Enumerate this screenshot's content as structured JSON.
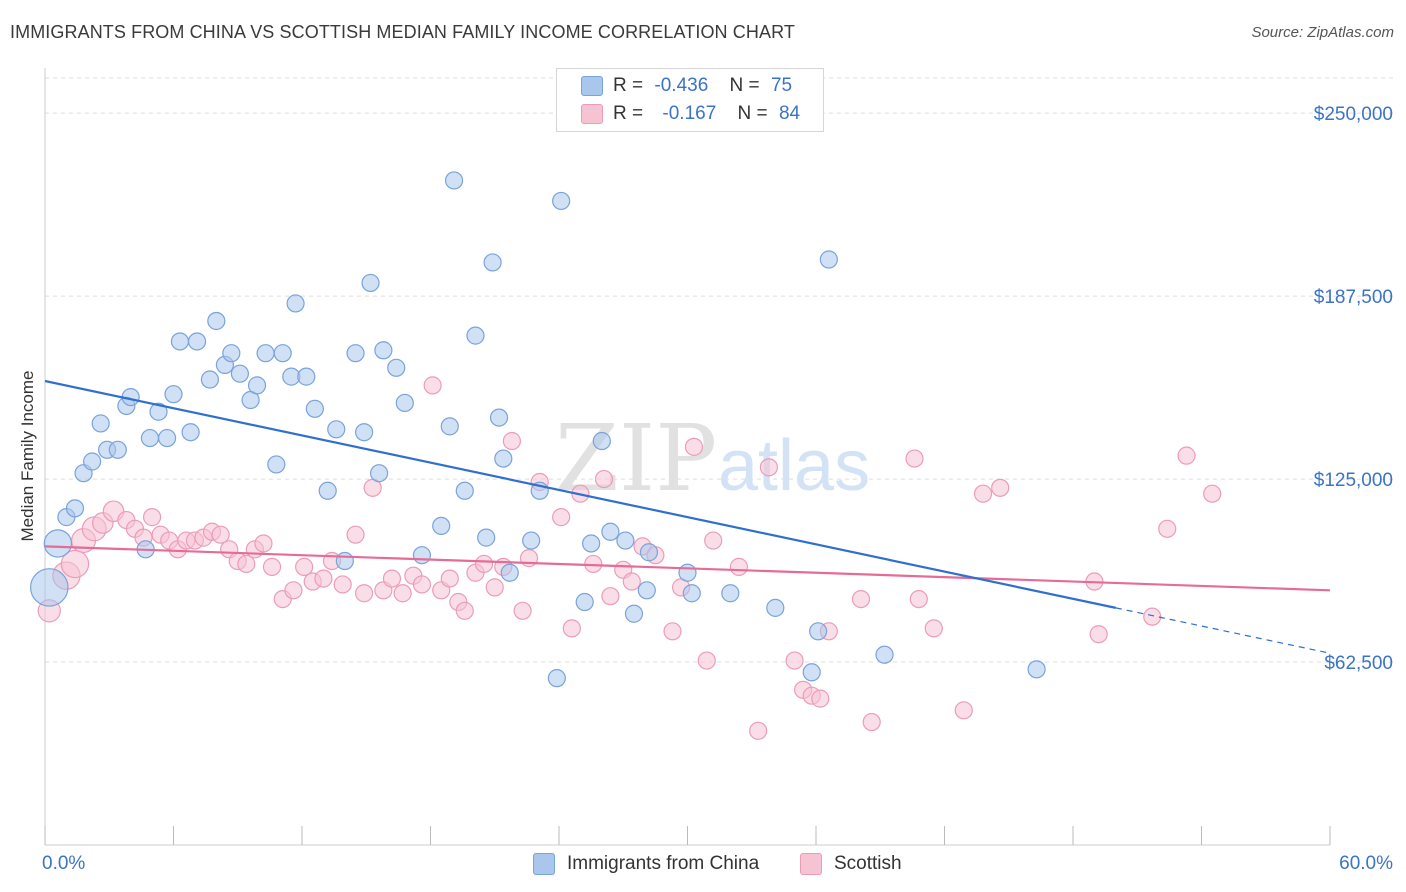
{
  "header": {
    "title": "IMMIGRANTS FROM CHINA VS SCOTTISH MEDIAN FAMILY INCOME CORRELATION CHART",
    "source": "Source: ZipAtlas.com"
  },
  "legend": {
    "china": {
      "r_label": "R =",
      "r_value": "-0.436",
      "n_label": "N =",
      "n_value": "75"
    },
    "scottish": {
      "r_label": "R =",
      "r_value": "-0.167",
      "n_label": "N =",
      "n_value": "84"
    }
  },
  "bottom_legend": {
    "china_label": "Immigrants from China",
    "scottish_label": "Scottish"
  },
  "watermark": {
    "zip": "ZIP",
    "atlas": "atlas"
  },
  "colors": {
    "china_fill": "#a9c6ec",
    "china_stroke": "#7aa3d9",
    "china_line": "#2f6fcf",
    "scottish_fill": "#f6c3d3",
    "scottish_stroke": "#ec9cb8",
    "scottish_line": "#e66b97",
    "axis_text": "#3b73c6",
    "grid": "#dddddd"
  },
  "chart_data": {
    "type": "scatter",
    "title": "IMMIGRANTS FROM CHINA VS SCOTTISH MEDIAN FAMILY INCOME CORRELATION CHART",
    "xlabel": "",
    "ylabel": "Median Family Income",
    "xlim": [
      0,
      60
    ],
    "ylim": [
      0,
      262000
    ],
    "x_tick_labels": [
      "0.0%",
      "60.0%"
    ],
    "y_ticks": [
      62500,
      125000,
      187500,
      250000
    ],
    "y_tick_labels": [
      "$62,500",
      "$125,000",
      "$187,500",
      "$250,000"
    ],
    "grid": true,
    "legend_position": "top-center",
    "series": [
      {
        "name": "Immigrants from China",
        "r": -0.436,
        "n": 75,
        "trend": {
          "x": [
            0,
            50
          ],
          "y": [
            158500,
            81000
          ]
        },
        "trend_dashed": {
          "x": [
            50,
            60
          ],
          "y": [
            81000,
            65500
          ]
        },
        "points": [
          [
            0.2,
            88000,
            2.2
          ],
          [
            0.6,
            103000,
            1.6
          ],
          [
            1.0,
            112000,
            1
          ],
          [
            1.4,
            115000,
            1
          ],
          [
            1.8,
            127000,
            1
          ],
          [
            2.2,
            131000,
            1
          ],
          [
            2.6,
            144000,
            1
          ],
          [
            2.9,
            135000,
            1
          ],
          [
            3.4,
            135000,
            1
          ],
          [
            3.8,
            150000,
            1
          ],
          [
            4.0,
            153000,
            1
          ],
          [
            4.7,
            101000,
            1
          ],
          [
            4.9,
            139000,
            1
          ],
          [
            5.3,
            148000,
            1
          ],
          [
            5.7,
            139000,
            1
          ],
          [
            6.0,
            154000,
            1
          ],
          [
            6.3,
            172000,
            1
          ],
          [
            6.8,
            141000,
            1
          ],
          [
            7.1,
            172000,
            1
          ],
          [
            7.7,
            159000,
            1
          ],
          [
            8.0,
            179000,
            1
          ],
          [
            8.4,
            164000,
            1
          ],
          [
            8.7,
            168000,
            1
          ],
          [
            9.1,
            161000,
            1
          ],
          [
            9.6,
            152000,
            1
          ],
          [
            9.9,
            157000,
            1
          ],
          [
            10.3,
            168000,
            1
          ],
          [
            10.8,
            130000,
            1
          ],
          [
            11.1,
            168000,
            1
          ],
          [
            11.5,
            160000,
            1
          ],
          [
            11.7,
            185000,
            1
          ],
          [
            12.2,
            160000,
            1
          ],
          [
            12.6,
            149000,
            1
          ],
          [
            13.2,
            121000,
            1
          ],
          [
            13.6,
            142000,
            1
          ],
          [
            14.0,
            97000,
            1
          ],
          [
            14.5,
            168000,
            1
          ],
          [
            14.9,
            141000,
            1
          ],
          [
            15.2,
            192000,
            1
          ],
          [
            15.6,
            127000,
            1
          ],
          [
            15.8,
            169000,
            1
          ],
          [
            16.4,
            163000,
            1
          ],
          [
            16.8,
            151000,
            1
          ],
          [
            17.6,
            99000,
            1
          ],
          [
            18.5,
            109000,
            1
          ],
          [
            18.9,
            143000,
            1
          ],
          [
            19.1,
            227000,
            1
          ],
          [
            19.6,
            121000,
            1
          ],
          [
            20.1,
            174000,
            1
          ],
          [
            20.6,
            105000,
            1
          ],
          [
            20.9,
            199000,
            1
          ],
          [
            21.2,
            146000,
            1
          ],
          [
            21.4,
            132000,
            1
          ],
          [
            21.7,
            93000,
            1
          ],
          [
            22.7,
            104000,
            1
          ],
          [
            23.1,
            121000,
            1
          ],
          [
            23.9,
            57000,
            1
          ],
          [
            24.1,
            220000,
            1
          ],
          [
            25.2,
            83000,
            1
          ],
          [
            25.5,
            103000,
            1
          ],
          [
            26.0,
            138000,
            1
          ],
          [
            26.4,
            107000,
            1
          ],
          [
            27.1,
            104000,
            1
          ],
          [
            27.5,
            79000,
            1
          ],
          [
            28.1,
            87000,
            1
          ],
          [
            28.2,
            100000,
            1
          ],
          [
            30.0,
            93000,
            1
          ],
          [
            30.2,
            86000,
            1
          ],
          [
            32.0,
            86000,
            1
          ],
          [
            34.1,
            81000,
            1
          ],
          [
            35.8,
            59000,
            1
          ],
          [
            36.1,
            73000,
            1
          ],
          [
            36.6,
            200000,
            1
          ],
          [
            39.2,
            65000,
            1
          ],
          [
            46.3,
            60000,
            1
          ]
        ]
      },
      {
        "name": "Scottish",
        "r": -0.167,
        "n": 84,
        "trend": {
          "x": [
            0,
            60
          ],
          "y": [
            102000,
            87000
          ]
        },
        "points": [
          [
            0.2,
            80000,
            1.3
          ],
          [
            1.0,
            92000,
            1.6
          ],
          [
            1.4,
            96000,
            1.6
          ],
          [
            1.8,
            104000,
            1.4
          ],
          [
            2.3,
            108000,
            1.4
          ],
          [
            2.7,
            110000,
            1.2
          ],
          [
            3.2,
            114000,
            1.2
          ],
          [
            3.8,
            111000,
            1
          ],
          [
            4.2,
            108000,
            1
          ],
          [
            4.6,
            105000,
            1
          ],
          [
            5.0,
            112000,
            1
          ],
          [
            5.4,
            106000,
            1
          ],
          [
            5.8,
            104000,
            1
          ],
          [
            6.2,
            101000,
            1
          ],
          [
            6.6,
            104000,
            1
          ],
          [
            7.0,
            104000,
            1
          ],
          [
            7.4,
            105000,
            1
          ],
          [
            7.8,
            107000,
            1
          ],
          [
            8.2,
            106000,
            1
          ],
          [
            8.6,
            101000,
            1
          ],
          [
            9.0,
            97000,
            1
          ],
          [
            9.4,
            96000,
            1
          ],
          [
            9.8,
            101000,
            1
          ],
          [
            10.2,
            103000,
            1
          ],
          [
            10.6,
            95000,
            1
          ],
          [
            11.1,
            84000,
            1
          ],
          [
            11.6,
            87000,
            1
          ],
          [
            12.1,
            95000,
            1
          ],
          [
            12.5,
            90000,
            1
          ],
          [
            13.0,
            91000,
            1
          ],
          [
            13.4,
            97000,
            1
          ],
          [
            13.9,
            89000,
            1
          ],
          [
            14.5,
            106000,
            1
          ],
          [
            14.9,
            86000,
            1
          ],
          [
            15.3,
            122000,
            1
          ],
          [
            15.8,
            87000,
            1
          ],
          [
            16.2,
            91000,
            1
          ],
          [
            16.7,
            86000,
            1
          ],
          [
            17.2,
            92000,
            1
          ],
          [
            17.6,
            89000,
            1
          ],
          [
            18.1,
            157000,
            1
          ],
          [
            18.5,
            87000,
            1
          ],
          [
            18.9,
            91000,
            1
          ],
          [
            19.3,
            83000,
            1
          ],
          [
            19.6,
            80000,
            1
          ],
          [
            20.1,
            93000,
            1
          ],
          [
            20.5,
            96000,
            1
          ],
          [
            21.0,
            88000,
            1
          ],
          [
            21.4,
            95000,
            1
          ],
          [
            21.8,
            138000,
            1
          ],
          [
            22.3,
            80000,
            1
          ],
          [
            22.6,
            98000,
            1
          ],
          [
            23.1,
            124000,
            1
          ],
          [
            24.1,
            112000,
            1
          ],
          [
            24.6,
            74000,
            1
          ],
          [
            25.0,
            120000,
            1
          ],
          [
            25.6,
            96000,
            1
          ],
          [
            26.1,
            125000,
            1
          ],
          [
            26.4,
            85000,
            1
          ],
          [
            27.0,
            94000,
            1
          ],
          [
            27.4,
            90000,
            1
          ],
          [
            27.9,
            102000,
            1
          ],
          [
            28.5,
            99000,
            1
          ],
          [
            29.3,
            73000,
            1
          ],
          [
            29.7,
            88000,
            1
          ],
          [
            30.3,
            136000,
            1
          ],
          [
            30.9,
            63000,
            1
          ],
          [
            31.2,
            104000,
            1
          ],
          [
            32.4,
            95000,
            1
          ],
          [
            33.3,
            39000,
            1
          ],
          [
            33.8,
            129000,
            1
          ],
          [
            35.0,
            63000,
            1
          ],
          [
            35.4,
            53000,
            1
          ],
          [
            35.8,
            51000,
            1
          ],
          [
            36.2,
            50000,
            1
          ],
          [
            36.6,
            73000,
            1
          ],
          [
            38.1,
            84000,
            1
          ],
          [
            38.6,
            42000,
            1
          ],
          [
            40.6,
            132000,
            1
          ],
          [
            40.8,
            84000,
            1
          ],
          [
            41.5,
            74000,
            1
          ],
          [
            42.9,
            46000,
            1
          ],
          [
            43.8,
            120000,
            1
          ],
          [
            44.6,
            122000,
            1
          ],
          [
            49.0,
            90000,
            1
          ],
          [
            49.2,
            72000,
            1
          ],
          [
            51.7,
            78000,
            1
          ],
          [
            52.4,
            108000,
            1
          ],
          [
            53.3,
            133000,
            1
          ],
          [
            54.5,
            120000,
            1
          ]
        ]
      }
    ]
  }
}
